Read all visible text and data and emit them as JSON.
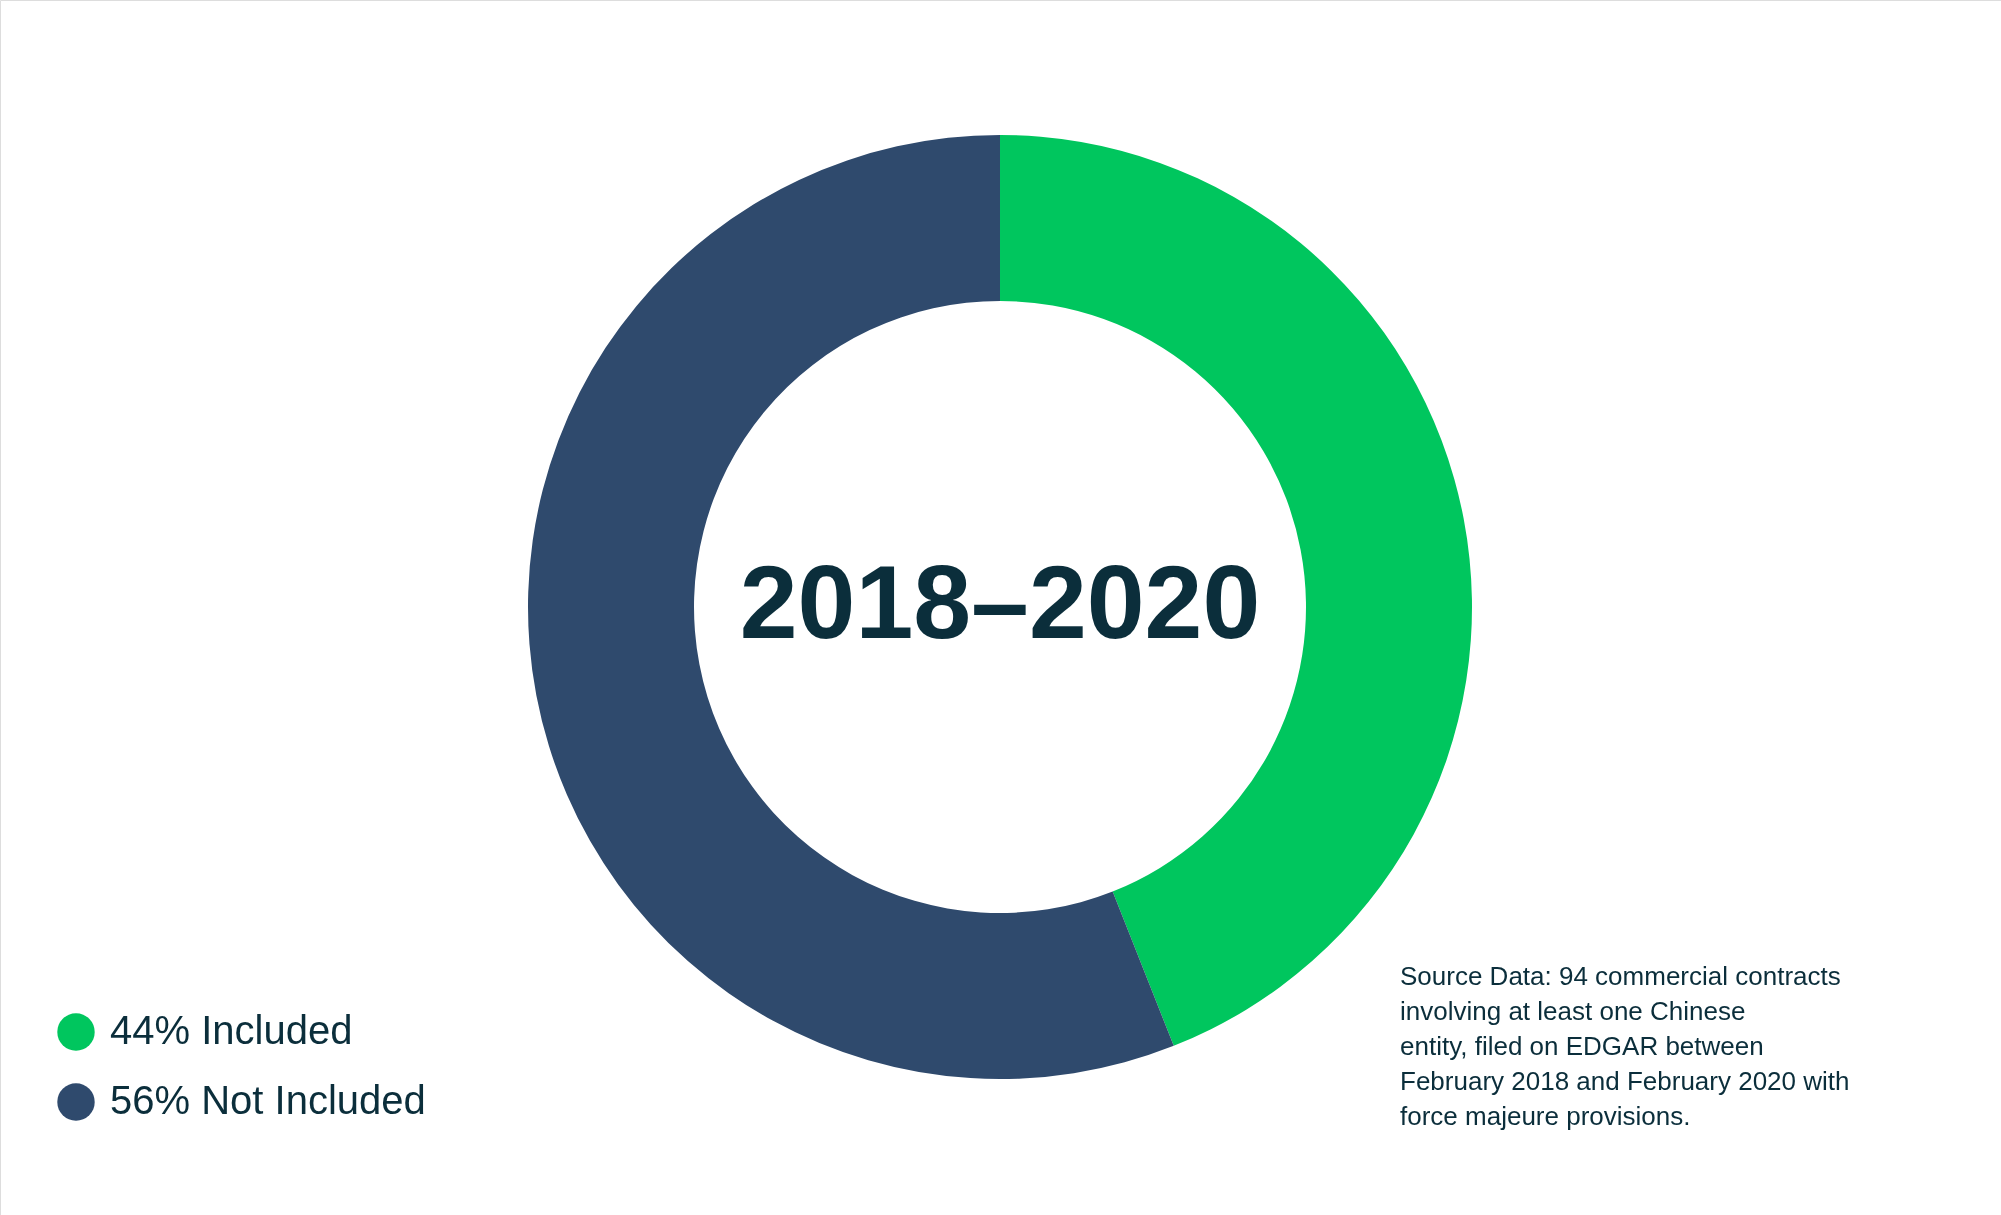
{
  "chart_data": {
    "type": "donut",
    "title": "2018–2020",
    "categories": [
      "Included",
      "Not Included"
    ],
    "values": [
      44,
      56
    ],
    "value_labels": [
      "44%",
      "56%"
    ],
    "colors": [
      "#00c65e",
      "#2f4a6d"
    ],
    "legend": "bottom left",
    "annotations": [
      "Source Data: 94 commercial contracts involving at least one Chinese entity, filed on EDGAR between February 2018 and February 2020 with force majeure provisions."
    ]
  }
}
